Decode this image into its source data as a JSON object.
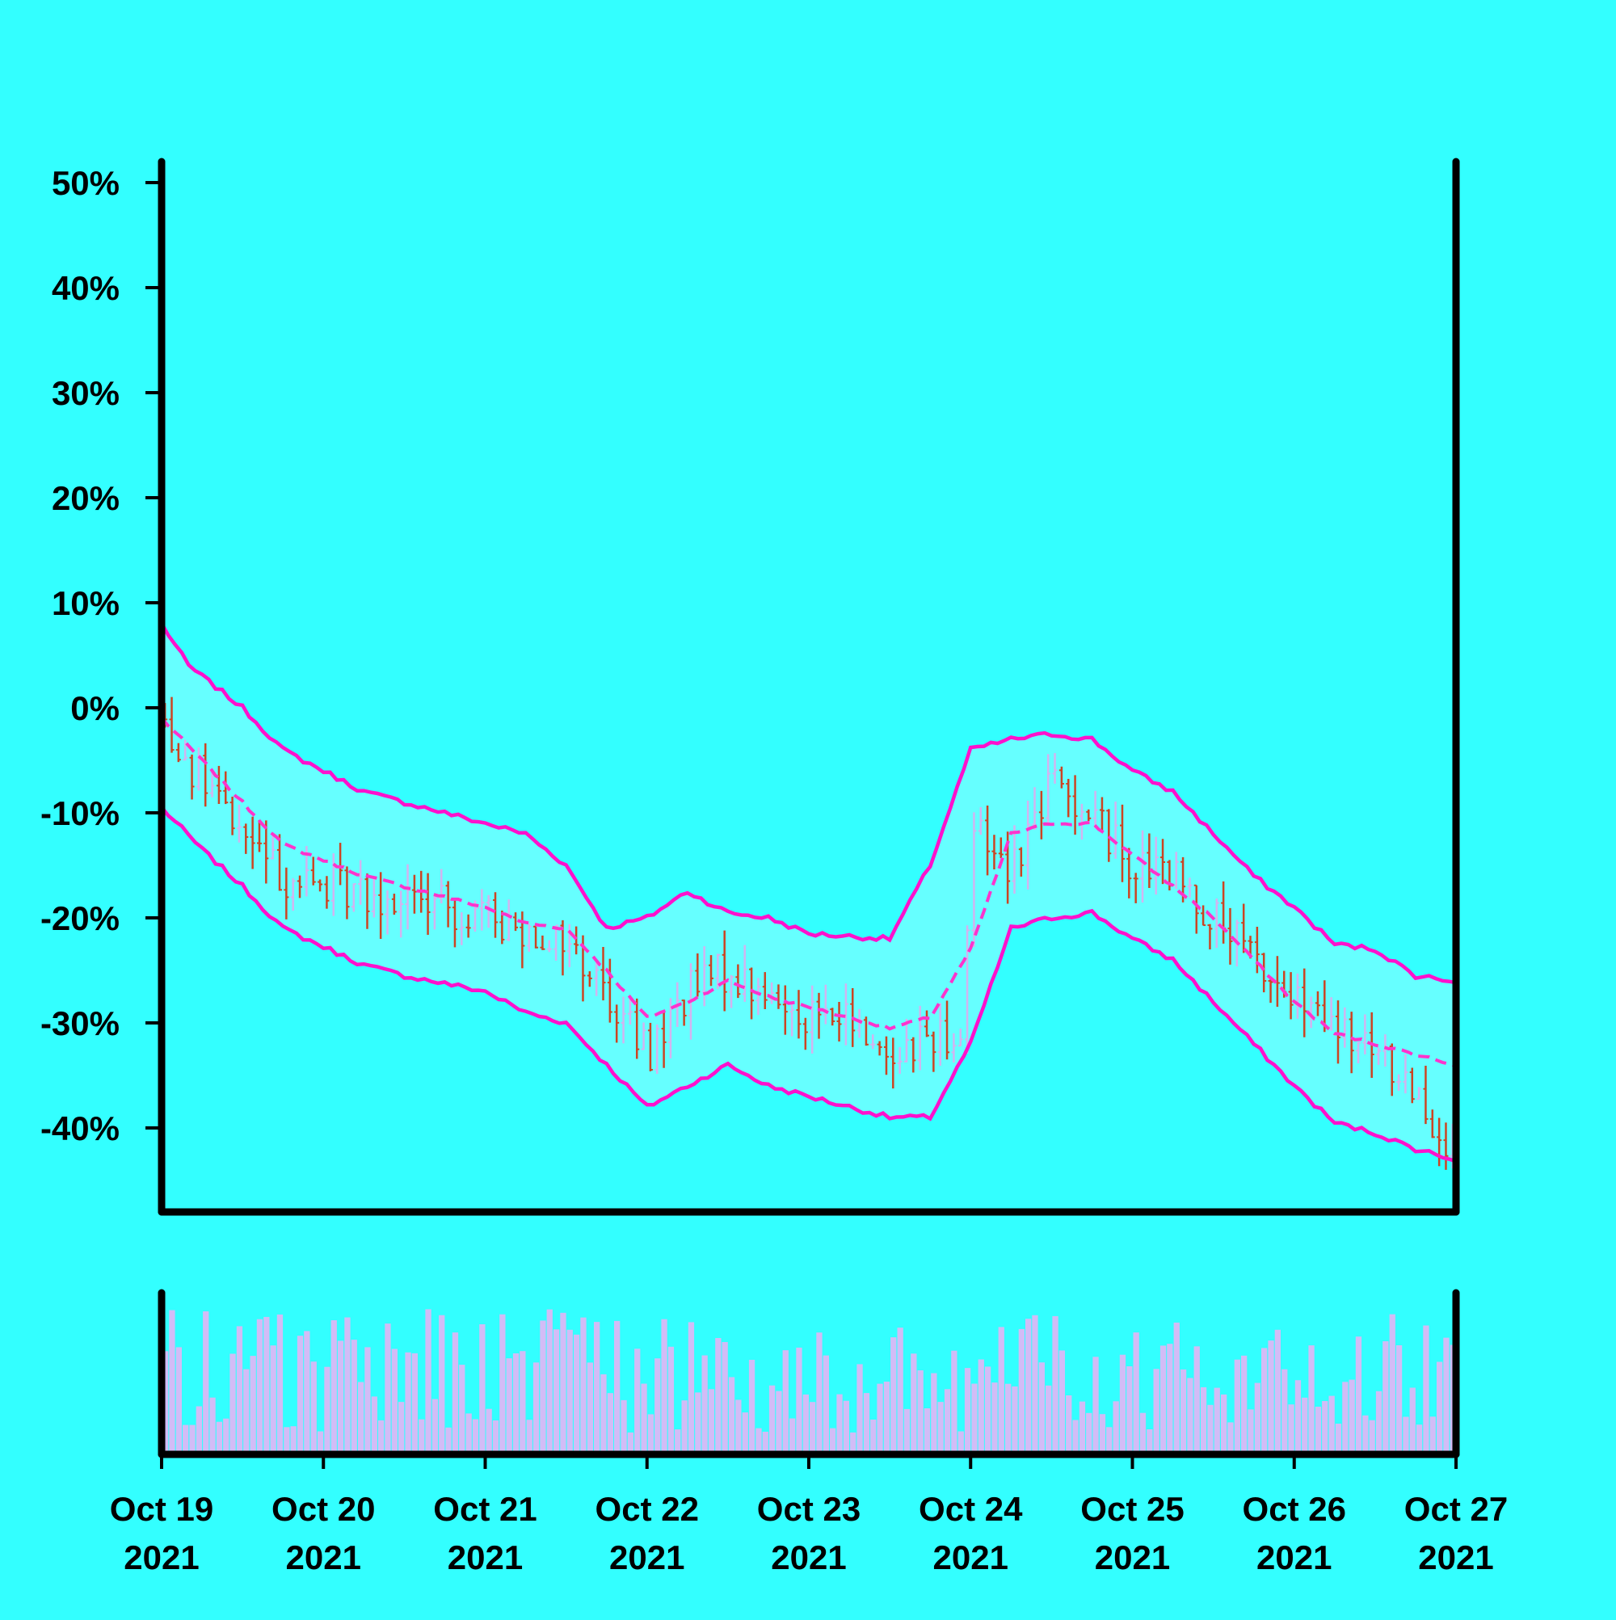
{
  "chart_data": {
    "type": "ohlc",
    "title": "",
    "xlabel": "",
    "ylabel": "",
    "y_axis": {
      "tick_values": [
        50,
        40,
        30,
        20,
        10,
        0,
        -10,
        -20,
        -30,
        -40
      ],
      "tick_labels": [
        "50%",
        "40%",
        "30%",
        "20%",
        "10%",
        "0%",
        "-10%",
        "-20%",
        "-30%",
        "-40%"
      ],
      "range": [
        -48,
        52
      ]
    },
    "x_axis": {
      "range": [
        "2021-10-19",
        "2021-10-27"
      ],
      "ticks": [
        {
          "date": "2021-10-19",
          "line1": "Oct 19",
          "line2": "2021"
        },
        {
          "date": "2021-10-20",
          "line1": "Oct 20",
          "line2": "2021"
        },
        {
          "date": "2021-10-21",
          "line1": "Oct 21",
          "line2": "2021"
        },
        {
          "date": "2021-10-22",
          "line1": "Oct 22",
          "line2": "2021"
        },
        {
          "date": "2021-10-23",
          "line1": "Oct 23",
          "line2": "2021"
        },
        {
          "date": "2021-10-24",
          "line1": "Oct 24",
          "line2": "2021"
        },
        {
          "date": "2021-10-25",
          "line1": "Oct 25",
          "line2": "2021"
        },
        {
          "date": "2021-10-26",
          "line1": "Oct 26",
          "line2": "2021"
        },
        {
          "date": "2021-10-27",
          "line1": "Oct 27",
          "line2": "2021"
        }
      ]
    },
    "grid": false,
    "legend": "none",
    "bar_interval_hours": 1,
    "price_path": {
      "x": [
        "2021-10-19 00:00",
        "2021-10-19 06:00",
        "2021-10-19 12:00",
        "2021-10-19 18:00",
        "2021-10-20 00:00",
        "2021-10-20 12:00",
        "2021-10-21 00:00",
        "2021-10-21 12:00",
        "2021-10-21 18:00",
        "2021-10-22 00:00",
        "2021-10-22 06:00",
        "2021-10-22 12:00",
        "2021-10-22 18:00",
        "2021-10-23 00:00",
        "2021-10-23 06:00",
        "2021-10-23 12:00",
        "2021-10-23 18:00",
        "2021-10-23 23:00",
        "2021-10-24 00:00",
        "2021-10-24 06:00",
        "2021-10-24 12:00",
        "2021-10-24 18:00",
        "2021-10-25 00:00",
        "2021-10-25 06:00",
        "2021-10-25 12:00",
        "2021-10-25 18:00",
        "2021-10-26 00:00",
        "2021-10-26 06:00",
        "2021-10-26 12:00",
        "2021-10-26 18:00",
        "2021-10-27 00:00"
      ],
      "y": [
        -1,
        -7,
        -12,
        -16,
        -17,
        -18,
        -20,
        -22,
        -27,
        -33,
        -27,
        -25,
        -28,
        -29,
        -30,
        -33,
        -31,
        -31,
        -11,
        -15,
        -7,
        -10,
        -15,
        -16,
        -20,
        -24,
        -28,
        -31,
        -33,
        -36,
        -43
      ]
    },
    "bollinger": {
      "window": 20,
      "num_std": 2,
      "upper": {
        "x": [
          "2021-10-19 00:00",
          "2021-10-19 04:00",
          "2021-10-19 12:00",
          "2021-10-19 18:00",
          "2021-10-20 06:00",
          "2021-10-20 12:00",
          "2021-10-21 00:00",
          "2021-10-21 06:00",
          "2021-10-21 12:00",
          "2021-10-21 18:00",
          "2021-10-22 00:00",
          "2021-10-22 06:00",
          "2021-10-22 12:00",
          "2021-10-22 18:00",
          "2021-10-23 00:00",
          "2021-10-23 12:00",
          "2021-10-23 18:00",
          "2021-10-24 00:00",
          "2021-10-24 06:00",
          "2021-10-24 12:00",
          "2021-10-24 18:00",
          "2021-10-25 00:00",
          "2021-10-25 06:00",
          "2021-10-25 12:00",
          "2021-10-25 18:00",
          "2021-10-26 00:00",
          "2021-10-26 06:00",
          "2021-10-26 12:00",
          "2021-10-26 18:00",
          "2021-10-27 00:00"
        ],
        "y": [
          8,
          4,
          0,
          -4,
          -8,
          -9,
          -11,
          -12,
          -15,
          -21,
          -20,
          -17.5,
          -19.5,
          -20,
          -21.5,
          -22,
          -15,
          -4,
          -3,
          -2.5,
          -3,
          -6,
          -8,
          -12,
          -16,
          -19,
          -22.5,
          -23,
          -25.5,
          -26
        ]
      },
      "middle": {
        "x": [
          "2021-10-19 00:00",
          "2021-10-19 06:00",
          "2021-10-19 12:00",
          "2021-10-19 18:00",
          "2021-10-20 06:00",
          "2021-10-20 12:00",
          "2021-10-21 00:00",
          "2021-10-21 06:00",
          "2021-10-21 12:00",
          "2021-10-21 18:00",
          "2021-10-22 00:00",
          "2021-10-22 06:00",
          "2021-10-22 12:00",
          "2021-10-22 18:00",
          "2021-10-23 00:00",
          "2021-10-23 12:00",
          "2021-10-23 18:00",
          "2021-10-24 00:00",
          "2021-10-24 06:00",
          "2021-10-24 12:00",
          "2021-10-24 18:00",
          "2021-10-25 00:00",
          "2021-10-25 06:00",
          "2021-10-25 12:00",
          "2021-10-25 18:00",
          "2021-10-26 00:00",
          "2021-10-26 06:00",
          "2021-10-26 12:00",
          "2021-10-26 18:00",
          "2021-10-27 00:00"
        ],
        "y": [
          -1,
          -5,
          -9,
          -13,
          -16,
          -17,
          -19,
          -20.5,
          -21,
          -25,
          -29.5,
          -28,
          -26,
          -27.5,
          -28.5,
          -30.5,
          -29.5,
          -23,
          -12,
          -11,
          -11,
          -14,
          -17,
          -20,
          -24,
          -28,
          -31,
          -32,
          -33,
          -34
        ]
      },
      "lower": {
        "x": [
          "2021-10-19 00:00",
          "2021-10-19 06:00",
          "2021-10-19 12:00",
          "2021-10-19 18:00",
          "2021-10-20 06:00",
          "2021-10-20 12:00",
          "2021-10-21 00:00",
          "2021-10-21 06:00",
          "2021-10-21 12:00",
          "2021-10-21 18:00",
          "2021-10-22 00:00",
          "2021-10-22 06:00",
          "2021-10-22 12:00",
          "2021-10-22 18:00",
          "2021-10-23 00:00",
          "2021-10-23 12:00",
          "2021-10-23 18:00",
          "2021-10-24 00:00",
          "2021-10-24 06:00",
          "2021-10-24 12:00",
          "2021-10-24 18:00",
          "2021-10-25 00:00",
          "2021-10-25 06:00",
          "2021-10-25 12:00",
          "2021-10-25 18:00",
          "2021-10-26 00:00",
          "2021-10-26 06:00",
          "2021-10-26 12:00",
          "2021-10-26 18:00",
          "2021-10-27 00:00"
        ],
        "y": [
          -9.5,
          -13.5,
          -17,
          -21,
          -24.5,
          -25.5,
          -27,
          -29,
          -30,
          -34,
          -38,
          -36,
          -34,
          -36,
          -37,
          -39,
          -39,
          -32,
          -21,
          -20,
          -19.5,
          -22,
          -24,
          -28,
          -32,
          -36,
          -39.5,
          -40.5,
          -42,
          -43
        ]
      }
    },
    "volume": {
      "relative": true,
      "range": [
        0.15,
        1.0
      ]
    },
    "colors": {
      "background": "#33ffff",
      "band_fill": "#66ffff",
      "band_line": "#ff11cc",
      "middle_line": "#ff33cc",
      "bar_down": "#cc4422",
      "bar_up": "#d2b4f0",
      "volume": "#d2bcf6",
      "axis": "#000000"
    }
  }
}
